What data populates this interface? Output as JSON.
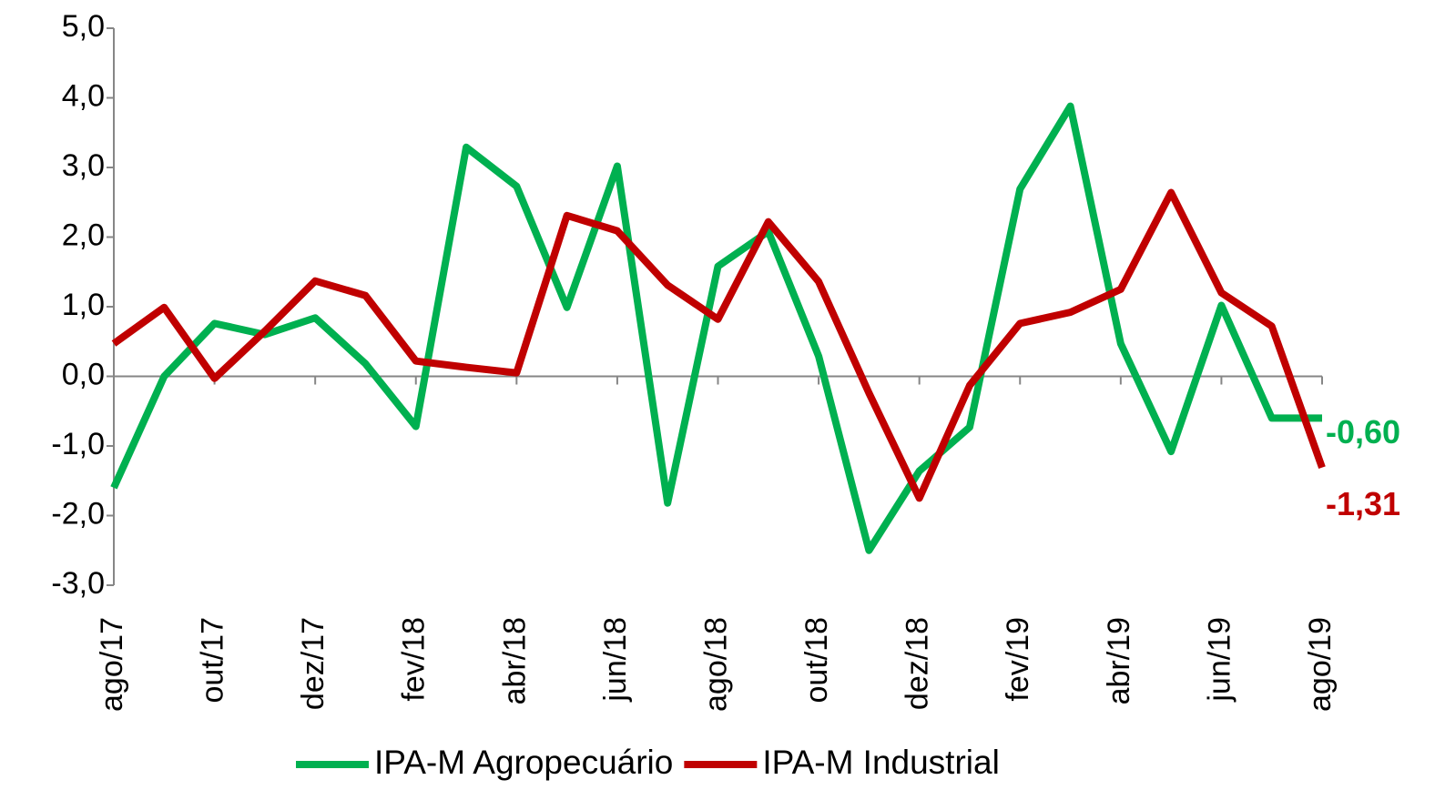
{
  "chart_data": {
    "type": "line",
    "categories": [
      "ago/17",
      null,
      "out/17",
      null,
      "dez/17",
      null,
      "fev/18",
      null,
      "abr/18",
      null,
      "jun/18",
      null,
      "ago/18",
      null,
      "out/18",
      null,
      "dez/18",
      null,
      "fev/19",
      null,
      "abr/19",
      null,
      "jun/19",
      null,
      "ago/19"
    ],
    "series": [
      {
        "name": "IPA-M Agropecuário",
        "color": "#00b050",
        "values": [
          -1.6,
          0.0,
          0.76,
          0.6,
          0.84,
          0.18,
          -0.72,
          3.29,
          2.73,
          0.99,
          3.02,
          -1.82,
          1.58,
          2.08,
          0.29,
          -2.5,
          -1.36,
          -0.73,
          2.69,
          3.88,
          0.47,
          -1.08,
          1.02,
          -0.6,
          -0.6
        ],
        "value_labels": [
          null,
          null,
          null,
          null,
          null,
          null,
          null,
          null,
          null,
          null,
          null,
          null,
          null,
          null,
          null,
          null,
          null,
          null,
          null,
          null,
          null,
          null,
          null,
          null,
          "-0,60"
        ]
      },
      {
        "name": "IPA-M Industrial",
        "color": "#c00000",
        "values": [
          0.47,
          0.99,
          -0.03,
          0.65,
          1.37,
          1.16,
          0.22,
          0.13,
          0.05,
          2.31,
          2.09,
          1.31,
          0.82,
          2.22,
          1.36,
          -0.24,
          -1.75,
          -0.13,
          0.76,
          0.92,
          1.25,
          2.64,
          1.2,
          0.72,
          -1.31
        ],
        "value_labels": [
          null,
          null,
          null,
          null,
          null,
          null,
          null,
          null,
          null,
          null,
          null,
          null,
          null,
          null,
          null,
          null,
          null,
          null,
          null,
          null,
          null,
          null,
          null,
          null,
          "-1,31"
        ]
      }
    ],
    "ylim": [
      -3,
      5
    ],
    "yticks": [
      {
        "value": -3,
        "label": "-3,0"
      },
      {
        "value": -2,
        "label": "-2,0"
      },
      {
        "value": -1,
        "label": "-1,0"
      },
      {
        "value": 0,
        "label": "0,0"
      },
      {
        "value": 1,
        "label": "1,0"
      },
      {
        "value": 2,
        "label": "2,0"
      },
      {
        "value": 3,
        "label": "3,0"
      },
      {
        "value": 4,
        "label": "4,0"
      },
      {
        "value": 5,
        "label": "5,0"
      }
    ],
    "grid": false,
    "legend": "bottom"
  }
}
